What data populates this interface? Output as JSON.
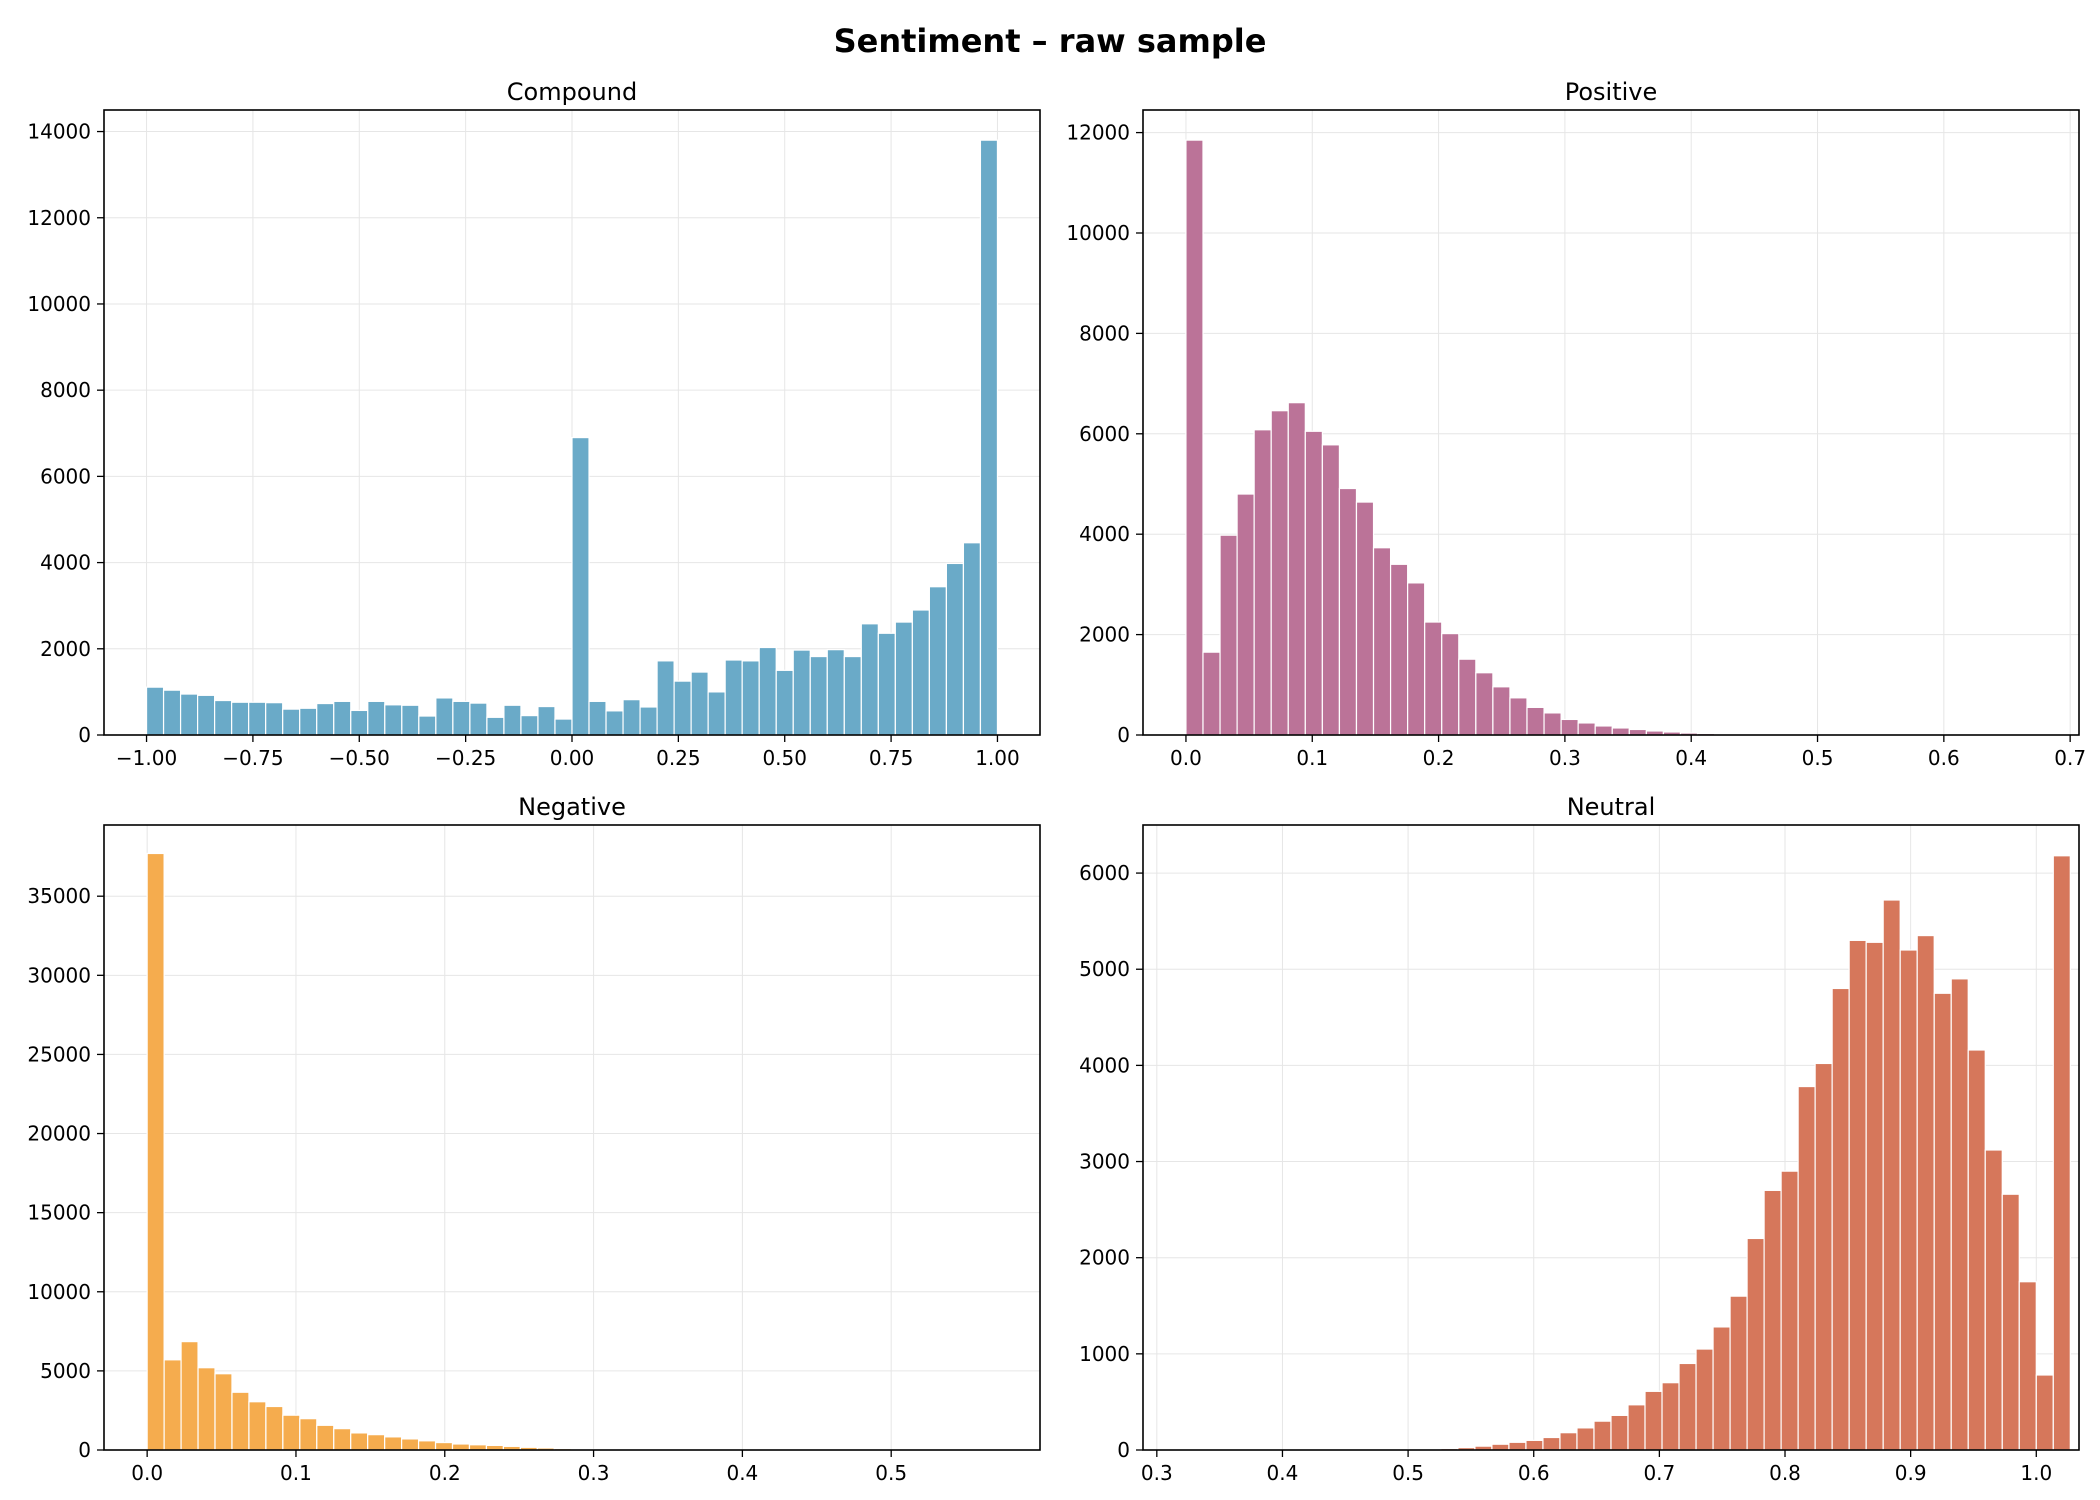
{
  "suptitle": "Sentiment – raw sample",
  "chart_data": [
    {
      "type": "bar",
      "title": "Compound",
      "color": "#6aaac8",
      "xlim": [
        -1.1,
        1.1
      ],
      "ylim": [
        0,
        14500
      ],
      "xticks": [
        -1.0,
        -0.75,
        -0.5,
        -0.25,
        0.0,
        0.25,
        0.5,
        0.75,
        1.0
      ],
      "xtick_labels": [
        "−1.00",
        "−0.75",
        "−0.50",
        "−0.25",
        "0.00",
        "0.25",
        "0.50",
        "0.75",
        "1.00"
      ],
      "yticks": [
        0,
        2000,
        4000,
        6000,
        8000,
        10000,
        12000,
        14000
      ],
      "ytick_labels": [
        "0",
        "2000",
        "4000",
        "6000",
        "8000",
        "10000",
        "12000",
        "14000"
      ],
      "bin_start": -1.0,
      "bin_width": 0.04,
      "values": [
        1110,
        1040,
        950,
        920,
        800,
        760,
        760,
        750,
        600,
        620,
        730,
        780,
        570,
        780,
        700,
        690,
        440,
        860,
        780,
        740,
        410,
        690,
        450,
        660,
        370,
        6900,
        780,
        560,
        820,
        650,
        1720,
        1250,
        1460,
        1000,
        1740,
        1720,
        2030,
        1500,
        1970,
        1820,
        1980,
        1820,
        2580,
        2360,
        2620,
        2900,
        3440,
        3980,
        4460,
        13800
      ]
    },
    {
      "type": "bar",
      "title": "Positive",
      "color": "#bb7398",
      "xlim": [
        -0.034,
        0.707
      ],
      "ylim": [
        0,
        12450
      ],
      "xticks": [
        0.0,
        0.1,
        0.2,
        0.3,
        0.4,
        0.5,
        0.6,
        0.7
      ],
      "xtick_labels": [
        "0.0",
        "0.1",
        "0.2",
        "0.3",
        "0.4",
        "0.5",
        "0.6",
        "0.7"
      ],
      "yticks": [
        0,
        2000,
        4000,
        6000,
        8000,
        10000,
        12000
      ],
      "ytick_labels": [
        "0",
        "2000",
        "4000",
        "6000",
        "8000",
        "10000",
        "12000"
      ],
      "bin_start": 0.0,
      "bin_width": 0.0135,
      "values": [
        11850,
        1650,
        3980,
        4800,
        6080,
        6460,
        6620,
        6050,
        5780,
        4910,
        4640,
        3730,
        3400,
        3030,
        2250,
        2020,
        1510,
        1240,
        960,
        740,
        550,
        440,
        310,
        240,
        180,
        140,
        110,
        80,
        60,
        40,
        30,
        20,
        15,
        12,
        10,
        8,
        6,
        5,
        4,
        3,
        2,
        2,
        2,
        1,
        1,
        1,
        1,
        1,
        1,
        1
      ]
    },
    {
      "type": "bar",
      "title": "Negative",
      "color": "#f5ac4e",
      "xlim": [
        -0.029,
        0.6
      ],
      "ylim": [
        0,
        39500
      ],
      "xticks": [
        0.0,
        0.1,
        0.2,
        0.3,
        0.4,
        0.5
      ],
      "xtick_labels": [
        "0.0",
        "0.1",
        "0.2",
        "0.3",
        "0.4",
        "0.5"
      ],
      "yticks": [
        0,
        5000,
        10000,
        15000,
        20000,
        25000,
        30000,
        35000
      ],
      "ytick_labels": [
        "0",
        "5000",
        "10000",
        "15000",
        "20000",
        "25000",
        "30000",
        "35000"
      ],
      "bin_start": 0.0,
      "bin_width": 0.0114,
      "values": [
        37700,
        5700,
        6850,
        5200,
        4820,
        3650,
        3050,
        2750,
        2200,
        1980,
        1560,
        1350,
        1080,
        970,
        830,
        700,
        580,
        470,
        380,
        330,
        290,
        230,
        170,
        130,
        90,
        60,
        40,
        30,
        20,
        15,
        10,
        8,
        6,
        5,
        4,
        3,
        2,
        2,
        1,
        1,
        1,
        1,
        1,
        1,
        1,
        1,
        1,
        1,
        1,
        1
      ]
    },
    {
      "type": "bar",
      "title": "Neutral",
      "color": "#d6775b",
      "xlim": [
        0.289,
        1.034
      ],
      "ylim": [
        0,
        6500
      ],
      "xticks": [
        0.3,
        0.4,
        0.5,
        0.6,
        0.7,
        0.8,
        0.9,
        1.0
      ],
      "xtick_labels": [
        "0.3",
        "0.4",
        "0.5",
        "0.6",
        "0.7",
        "0.8",
        "0.9",
        "1.0"
      ],
      "yticks": [
        0,
        1000,
        2000,
        3000,
        4000,
        5000,
        6000
      ],
      "ytick_labels": [
        "0",
        "1000",
        "2000",
        "3000",
        "4000",
        "5000",
        "6000"
      ],
      "bin_start": 0.323,
      "bin_width": 0.01354,
      "values": [
        1,
        1,
        1,
        1,
        1,
        1,
        1,
        1,
        1,
        1,
        2,
        2,
        3,
        5,
        10,
        15,
        25,
        40,
        60,
        80,
        100,
        130,
        180,
        230,
        300,
        360,
        470,
        610,
        700,
        900,
        1050,
        1280,
        1600,
        2200,
        2700,
        2900,
        3780,
        4020,
        4800,
        5300,
        5280,
        5720,
        5200,
        5350,
        4750,
        4900,
        4160,
        3120,
        2660,
        1750,
        780,
        6180
      ]
    }
  ]
}
